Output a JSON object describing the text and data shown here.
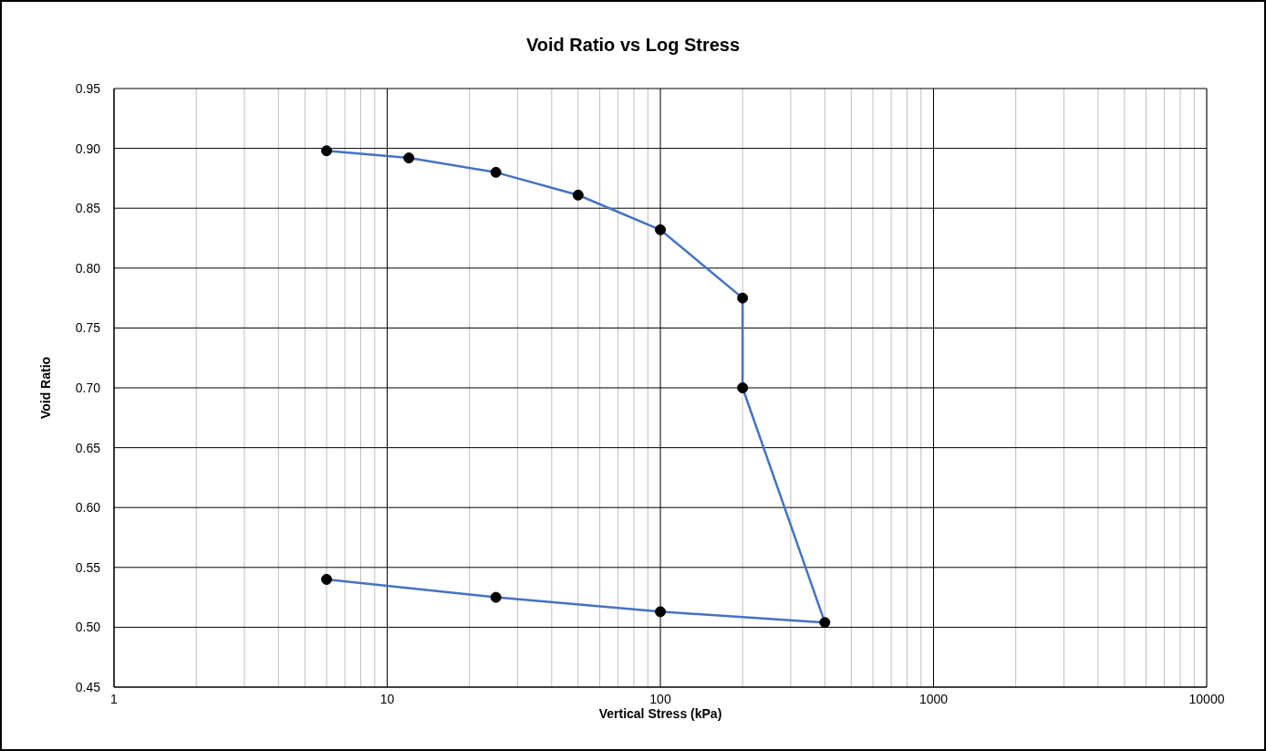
{
  "chart_data": {
    "type": "line",
    "title": "Void Ratio vs Log Stress",
    "xlabel": "Vertical Stress (kPa)",
    "ylabel": "Void Ratio",
    "x": [
      6,
      12,
      25,
      50,
      100,
      200,
      200,
      400,
      100,
      25,
      6
    ],
    "values": [
      0.898,
      0.892,
      0.88,
      0.861,
      0.832,
      0.775,
      0.7,
      0.504,
      0.513,
      0.525,
      0.54
    ],
    "color": "#4472c4",
    "log": "x",
    "xlim": [
      1,
      10000
    ],
    "xticks": [
      1,
      {
        "value": 2,
        "label": null
      },
      {
        "value": 3,
        "label": null
      },
      {
        "value": 4,
        "label": null
      },
      {
        "value": 5,
        "label": null
      },
      {
        "value": 6,
        "label": null
      },
      {
        "value": 7,
        "label": null
      },
      {
        "value": 8,
        "label": null
      },
      {
        "value": 9,
        "label": null
      },
      10,
      {
        "value": 20,
        "label": null
      },
      {
        "value": 30,
        "label": null
      },
      {
        "value": 40,
        "label": null
      },
      {
        "value": 50,
        "label": null
      },
      {
        "value": 60,
        "label": null
      },
      {
        "value": 70,
        "label": null
      },
      {
        "value": 80,
        "label": null
      },
      {
        "value": 90,
        "label": null
      },
      100,
      {
        "value": 200,
        "label": null
      },
      {
        "value": 300,
        "label": null
      },
      {
        "value": 400,
        "label": null
      },
      {
        "value": 500,
        "label": null
      },
      {
        "value": 600,
        "label": null
      },
      {
        "value": 700,
        "label": null
      },
      {
        "value": 800,
        "label": null
      },
      {
        "value": 900,
        "label": null
      },
      1000,
      {
        "value": 2000,
        "label": null
      },
      {
        "value": 3000,
        "label": null
      },
      {
        "value": 4000,
        "label": null
      },
      {
        "value": 5000,
        "label": null
      },
      {
        "value": 6000,
        "label": null
      },
      {
        "value": 7000,
        "label": null
      },
      {
        "value": 8000,
        "label": null
      },
      {
        "value": 9000,
        "label": null
      },
      10000
    ],
    "ylim": [
      0.45,
      0.95
    ],
    "yticks": [
      {
        "value": 0.45,
        "label": "0.45"
      },
      {
        "value": 0.5,
        "label": "0.50"
      },
      {
        "value": 0.55,
        "label": "0.55"
      },
      {
        "value": 0.6,
        "label": "0.60"
      },
      {
        "value": 0.65,
        "label": "0.65"
      },
      {
        "value": 0.7,
        "label": "0.70"
      },
      {
        "value": 0.75,
        "label": "0.75"
      },
      {
        "value": 0.8,
        "label": "0.80"
      },
      {
        "value": 0.85,
        "label": "0.85"
      },
      {
        "value": 0.9,
        "label": "0.90"
      },
      {
        "value": 0.95,
        "label": "0.95"
      }
    ],
    "grid": true,
    "marker": "circle",
    "line_style": "solid"
  }
}
